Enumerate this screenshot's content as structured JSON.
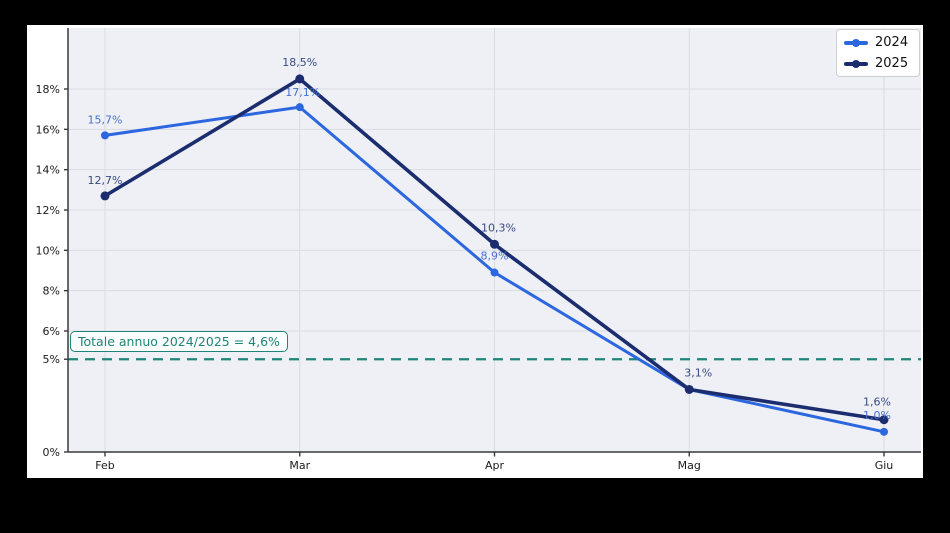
{
  "window": {
    "canvas_bg": "#000000",
    "figure_bg": "#ffffff"
  },
  "chart_data": {
    "type": "line",
    "categories": [
      "Feb",
      "Mar",
      "Apr",
      "Mag",
      "Giu"
    ],
    "series": [
      {
        "name": "2024",
        "color": "#2c67e0",
        "label_color": "#4a72cf",
        "line_width": 3,
        "marker": "circle",
        "marker_radius": 4,
        "values": [
          15.7,
          17.1,
          8.9,
          3.1,
          1.0
        ],
        "point_labels": [
          {
            "text": "15,7%",
            "dx": 0,
            "dy": -12
          },
          {
            "text": "17,1%",
            "dx": 3,
            "dy": -11
          },
          {
            "text": "8,9%",
            "dx": 0,
            "dy": -13
          },
          {
            "text": "",
            "dx": 0,
            "dy": 0
          },
          {
            "text": "1,0%",
            "dx": -7,
            "dy": -13
          }
        ]
      },
      {
        "name": "2025",
        "color": "#1b2d6e",
        "label_color": "#3b4b82",
        "line_width": 3.6,
        "marker": "circle",
        "marker_radius": 4.5,
        "values": [
          12.7,
          18.5,
          10.3,
          3.1,
          1.6
        ],
        "point_labels": [
          {
            "text": "12,7%",
            "dx": 0,
            "dy": -12
          },
          {
            "text": "18,5%",
            "dx": 0,
            "dy": -13
          },
          {
            "text": "10,3%",
            "dx": 4,
            "dy": -13
          },
          {
            "text": "3,1%",
            "dx": 9,
            "dy": -13
          },
          {
            "text": "1,6%",
            "dx": -7,
            "dy": -14
          }
        ]
      }
    ],
    "y_ticks": [
      {
        "value": 0,
        "label": "0%"
      },
      {
        "value": 4.6,
        "label": "5%"
      },
      {
        "value": 6,
        "label": "6%"
      },
      {
        "value": 8,
        "label": "8%"
      },
      {
        "value": 10,
        "label": "10%"
      },
      {
        "value": 12,
        "label": "12%"
      },
      {
        "value": 14,
        "label": "14%"
      },
      {
        "value": 16,
        "label": "16%"
      },
      {
        "value": 18,
        "label": "18%"
      }
    ],
    "ylim": [
      0,
      19.7
    ],
    "grid": true,
    "legend_position": "upper right",
    "reference_line": {
      "value": 4.6,
      "label": "Totale annuo 2024/2025 = 4,6%",
      "color": "#1e8578",
      "style": "dashed"
    },
    "colors": {
      "plot_bg": "#eef0f5",
      "grid": "#d9dce4",
      "spine": "#3a3a3a",
      "tick_label": "#1c1c1c"
    }
  }
}
